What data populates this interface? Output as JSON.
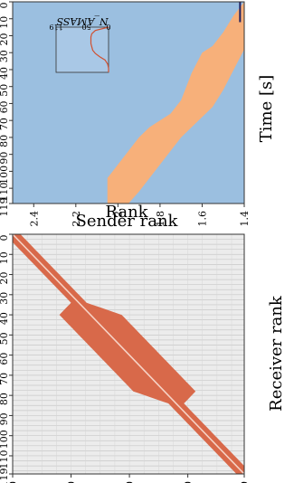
{
  "chart_data": [
    {
      "type": "heatmap",
      "xlabel": "Receiver rank",
      "ylabel": "Sender rank",
      "xlim": [
        0,
        119
      ],
      "ylim": [
        0,
        119
      ],
      "x_ticks": [
        "0",
        "30",
        "60",
        "90",
        "119"
      ],
      "y_ticks": [
        "0",
        "10",
        "20",
        "30",
        "40",
        "50",
        "60",
        "70",
        "80",
        "90",
        "100",
        "110",
        "119"
      ],
      "diagonal_band_halfwidth": 4,
      "block": {
        "rank_from": 40,
        "rank_to": 78,
        "peak_halfwidth": 16
      },
      "colors": {
        "band": "#d8694a",
        "background": "#ececec",
        "grid": "#c8c8c8"
      }
    },
    {
      "type": "area",
      "xlabel": "Time [s]",
      "ylabel": "Rank",
      "xlim": [
        1.4,
        2.5
      ],
      "ylim": [
        0,
        119
      ],
      "x_ticks": [
        "1.4",
        "1.6",
        "1.8",
        "2",
        "2.2",
        "2.4"
      ],
      "y_ticks": [
        "0",
        "10",
        "20",
        "30",
        "40",
        "50",
        "60",
        "70",
        "80",
        "90",
        "100",
        "110",
        "119"
      ],
      "band": {
        "time": [
          1.4,
          1.45,
          1.5,
          1.55,
          1.6,
          1.65,
          1.7,
          1.75,
          1.8,
          1.85,
          1.9,
          1.95,
          2.0,
          2.05
        ],
        "lower": [
          0,
          8,
          18,
          26,
          30,
          42,
          58,
          66,
          70,
          74,
          80,
          88,
          96,
          104
        ],
        "upper": [
          28,
          40,
          52,
          62,
          68,
          74,
          80,
          88,
          96,
          104,
          112,
          119,
          119,
          119
        ]
      },
      "colors": {
        "band": "#f7b07a",
        "background": "#9bbfe0",
        "marker": "#202060"
      },
      "marker_time": 1.42,
      "inset": {
        "ylabel": "N_AMASS",
        "y_ticks": [
          "119",
          "50",
          "0"
        ],
        "xlim": [
          1.4,
          2.5
        ],
        "ylim": [
          0,
          119
        ],
        "time": [
          1.4,
          1.48,
          1.56,
          1.64,
          1.72,
          1.8,
          1.88,
          1.96,
          2.04,
          2.12,
          2.2,
          2.3,
          2.4,
          2.5
        ],
        "values": [
          0,
          30,
          38,
          40,
          40,
          40,
          38,
          36,
          30,
          20,
          8,
          2,
          0,
          0
        ]
      }
    }
  ]
}
